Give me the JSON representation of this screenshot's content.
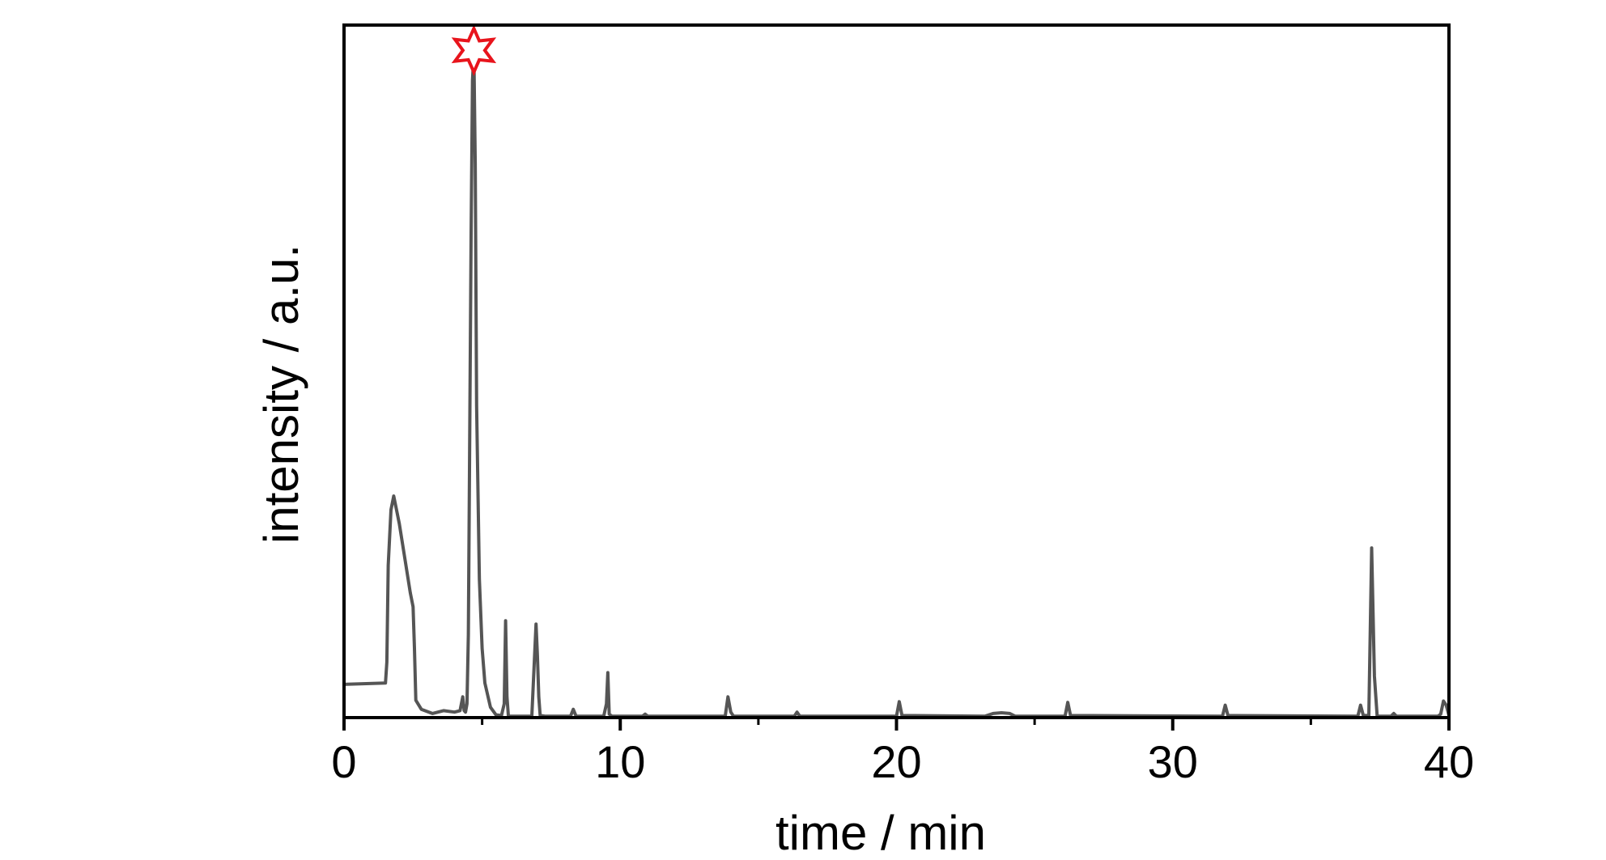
{
  "chart_data": {
    "type": "line",
    "title": "",
    "xlabel": "time / min",
    "ylabel": "intensity / a.u.",
    "xlim": [
      0,
      40
    ],
    "ylim": [
      0,
      100
    ],
    "x_ticks": [
      0,
      10,
      20,
      30,
      40
    ],
    "x_minor_ticks": [
      5,
      15,
      25,
      35
    ],
    "grid": false,
    "legend": "none",
    "colors": {
      "line": "#555555",
      "marker": "#e8141c",
      "axis": "#000000"
    },
    "annotations": [
      {
        "type": "star-marker",
        "name": "star-icon",
        "x": 4.7,
        "y": 96
      }
    ],
    "series": [
      {
        "x": [
          0.0,
          1.5,
          1.55,
          1.6,
          1.7,
          1.8,
          2.0,
          2.2,
          2.4,
          2.5,
          2.55,
          2.6,
          2.8,
          3.2,
          3.6,
          4.0,
          4.2,
          4.3,
          4.35,
          4.4,
          4.45,
          4.5,
          4.6,
          4.65,
          4.7,
          4.75,
          4.8,
          4.9,
          5.0,
          5.1,
          5.3,
          5.5,
          5.7,
          5.8,
          5.85,
          5.9,
          5.95,
          6.0,
          6.3,
          6.8,
          6.95,
          7.0,
          7.05,
          7.1,
          7.3,
          8.2,
          8.3,
          8.4,
          9.4,
          9.5,
          9.55,
          9.6,
          9.7,
          10.8,
          10.9,
          11.0,
          13.8,
          13.9,
          14.0,
          14.1,
          16.3,
          16.4,
          16.5,
          20.0,
          20.1,
          20.2,
          23.2,
          23.5,
          23.8,
          24.1,
          24.3,
          26.1,
          26.2,
          26.3,
          31.8,
          31.9,
          32.0,
          36.7,
          36.8,
          36.9,
          37.1,
          37.2,
          37.3,
          37.4,
          37.9,
          38.0,
          38.1,
          39.6,
          39.7,
          39.8,
          39.9,
          40.0
        ],
        "y": [
          4.8,
          5.0,
          8.0,
          22.0,
          30.0,
          32.0,
          28.0,
          23.0,
          18.0,
          16.0,
          10.0,
          2.5,
          1.2,
          0.6,
          1.0,
          0.8,
          1.0,
          3.0,
          1.0,
          0.8,
          2.0,
          12.0,
          70.0,
          92.0,
          96.0,
          80.0,
          45.0,
          20.0,
          10.0,
          5.0,
          1.5,
          0.4,
          0.3,
          2.0,
          14.0,
          3.0,
          0.3,
          0.2,
          0.2,
          0.2,
          13.5,
          9.0,
          3.0,
          0.3,
          0.2,
          0.2,
          1.2,
          0.2,
          0.2,
          2.0,
          6.5,
          0.5,
          0.2,
          0.2,
          0.5,
          0.2,
          0.2,
          3.0,
          0.8,
          0.2,
          0.2,
          0.8,
          0.2,
          0.2,
          2.3,
          0.3,
          0.2,
          0.6,
          0.7,
          0.6,
          0.2,
          0.2,
          2.2,
          0.3,
          0.2,
          1.8,
          0.3,
          0.2,
          1.8,
          0.3,
          0.3,
          24.5,
          6.0,
          0.2,
          0.2,
          0.6,
          0.2,
          0.2,
          0.5,
          2.4,
          1.8,
          0.3
        ]
      }
    ]
  }
}
